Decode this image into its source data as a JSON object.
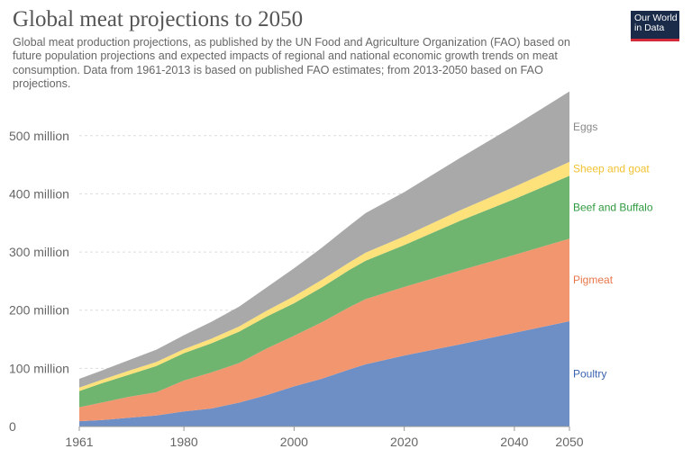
{
  "header": {
    "title": "Global meat projections to 2050",
    "subtitle": "Global meat production projections, as published by the UN Food and Agriculture Organization (FAO) based on future population projections and expected impacts of regional and national economic growth trends on meat consumption. Data from 1961-2013 is based on published FAO estimates; from 2013-2050 based on FAO projections.",
    "logo_line1": "Our World",
    "logo_line2": "in Data"
  },
  "colors": {
    "poultry": "#6d8fc6",
    "pigmeat": "#f29670",
    "beef": "#6fb46f",
    "sheep": "#fde17a",
    "eggs": "#a9a9a9",
    "poultry_label": "#3b63b0",
    "pigmeat_label": "#e8774b",
    "beef_label": "#2f9a3f",
    "sheep_label": "#f2c230",
    "eggs_label": "#888888"
  },
  "chart_data": {
    "type": "area",
    "stacked": true,
    "x": [
      1961,
      1965,
      1970,
      1975,
      1980,
      1985,
      1990,
      1995,
      2000,
      2005,
      2010,
      2013,
      2020,
      2030,
      2040,
      2050
    ],
    "series": [
      {
        "name": "Poultry",
        "values": [
          9,
          11,
          15,
          19,
          26,
          31,
          41,
          54,
          69,
          82,
          98,
          107,
          122,
          141,
          161,
          181
        ]
      },
      {
        "name": "Pigmeat",
        "values": [
          24,
          30,
          36,
          40,
          53,
          62,
          68,
          80,
          87,
          97,
          107,
          112,
          118,
          127,
          134,
          142
        ]
      },
      {
        "name": "Beef and Buffalo",
        "values": [
          28,
          33,
          38,
          45,
          47,
          50,
          54,
          55,
          56,
          60,
          64,
          66,
          72,
          85,
          96,
          108
        ]
      },
      {
        "name": "Sheep and goat",
        "values": [
          6,
          6,
          7,
          7,
          7,
          8,
          9,
          10,
          12,
          13,
          13,
          14,
          15,
          18,
          21,
          24
        ]
      },
      {
        "name": "Eggs",
        "values": [
          15,
          16,
          18,
          21,
          24,
          29,
          34,
          40,
          48,
          55,
          63,
          68,
          76,
          90,
          105,
          121
        ]
      }
    ],
    "xlim": [
      1961,
      2050
    ],
    "ylim": [
      0,
      560
    ],
    "y_ticks": [
      0,
      100,
      200,
      300,
      400,
      500
    ],
    "y_tick_labels": [
      "0",
      "100 million",
      "200 million",
      "300 million",
      "400 million",
      "500 million"
    ],
    "x_ticks": [
      1961,
      1980,
      2000,
      2020,
      2040,
      2050
    ],
    "x_tick_labels": [
      "1961",
      "1980",
      "2000",
      "2020",
      "2040",
      "2050"
    ],
    "grid": true,
    "legend": "right-end labels"
  }
}
